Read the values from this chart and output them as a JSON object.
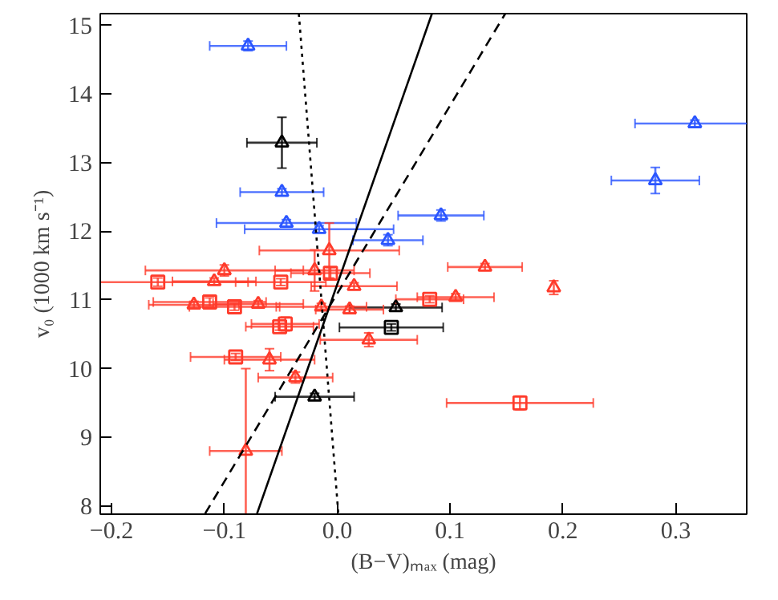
{
  "chart_data": {
    "type": "scatter",
    "xlabel": "(B−V)ₘₐₓ (mag)",
    "ylabel": "v₀ (1000 km s⁻¹)",
    "xlim": [
      -0.21,
      0.363
    ],
    "ylim": [
      7.88,
      15.17
    ],
    "xticks": [
      {
        "value": -0.2,
        "label": "−0.2"
      },
      {
        "value": -0.1,
        "label": "−0.1"
      },
      {
        "value": 0,
        "label": "0.0"
      },
      {
        "value": 0.1,
        "label": "0.1"
      },
      {
        "value": 0.2,
        "label": "0.2"
      },
      {
        "value": 0.3,
        "label": "0.3"
      }
    ],
    "yticks": [
      8,
      9,
      10,
      11,
      12,
      13,
      14,
      15
    ],
    "series": [
      {
        "marker": "triangle",
        "color": "#2a55ff",
        "x": [
          -0.079,
          -0.049,
          -0.045,
          -0.016,
          0.045,
          0.092,
          0.317,
          0.282
        ],
        "values": [
          14.7,
          12.57,
          12.12,
          12.03,
          11.87,
          12.23,
          13.57,
          12.74
        ],
        "xerrors": [
          0.034,
          0.037,
          0.062,
          0.066,
          0.031,
          0.038,
          0.053,
          0.039
        ],
        "errors": [
          0.07,
          0.05,
          0.05,
          0.05,
          0.08,
          0.08,
          0.05,
          0.19
        ]
      },
      {
        "marker": "triangle",
        "color": "#000000",
        "x": [
          -0.049,
          0.052,
          -0.02
        ],
        "values": [
          13.29,
          10.89,
          9.59
        ],
        "xerrors": [
          0.031,
          0.041,
          0.035
        ],
        "errors": [
          0.37,
          0.05,
          0.05
        ]
      },
      {
        "marker": "square",
        "color": "#000000",
        "x": [
          0.048
        ],
        "values": [
          10.6
        ],
        "xerrors": [
          0.046
        ],
        "errors": [
          0.05
        ]
      },
      {
        "marker": "triangle",
        "color": "#ff3b2b",
        "x": [
          -0.007,
          -0.1,
          -0.109,
          -0.02,
          0.015,
          -0.127,
          -0.07,
          -0.014,
          0.011,
          0.028,
          -0.06,
          -0.037,
          -0.081,
          0.131,
          0.192,
          0.105
        ],
        "values": [
          11.72,
          11.43,
          11.27,
          11.43,
          11.2,
          10.93,
          10.94,
          10.9,
          10.86,
          10.42,
          10.13,
          9.87,
          8.8,
          11.48,
          11.18,
          11.04
        ],
        "xerrors": [
          0.062,
          0.07,
          0.037,
          0.035,
          0.038,
          0.04,
          0.04,
          0.04,
          0.03,
          0.043,
          0.04,
          0.033,
          0.032,
          0.033,
          null,
          0.034
        ],
        "errors": [
          0.4,
          0.08,
          0.05,
          0.3,
          0.05,
          0.05,
          0.05,
          0.05,
          0.05,
          0.1,
          0.16,
          0.08,
          1.2,
          0.05,
          0.1,
          0.05
        ]
      },
      {
        "marker": "square",
        "color": "#ff3b2b",
        "x": [
          -0.159,
          -0.05,
          -0.006,
          -0.113,
          -0.091,
          -0.051,
          -0.046,
          -0.09,
          0.082,
          0.162
        ],
        "values": [
          11.26,
          11.26,
          11.39,
          10.97,
          10.9,
          10.61,
          10.65,
          10.17,
          11.01,
          9.5
        ],
        "xerrors": [
          0.08,
          0.04,
          0.035,
          0.05,
          0.04,
          0.03,
          0.03,
          0.04,
          0.03,
          0.065
        ],
        "errors": [
          0.06,
          0.05,
          0.08,
          0.06,
          0.05,
          0.05,
          0.1,
          0.05,
          0.05,
          0.1
        ]
      },
      {
        "type": "line",
        "line_style": "solid",
        "color": "#000000",
        "x": [
          -0.071,
          0.084
        ],
        "values": [
          7.89,
          15.17
        ]
      },
      {
        "type": "line",
        "line_style": "dashed",
        "color": "#000000",
        "x": [
          -0.117,
          0.149
        ],
        "values": [
          7.89,
          15.17
        ]
      },
      {
        "type": "line",
        "line_style": "dotted",
        "color": "#000000",
        "x": [
          -0.034,
          0.001
        ],
        "values": [
          15.17,
          7.89
        ]
      }
    ]
  }
}
